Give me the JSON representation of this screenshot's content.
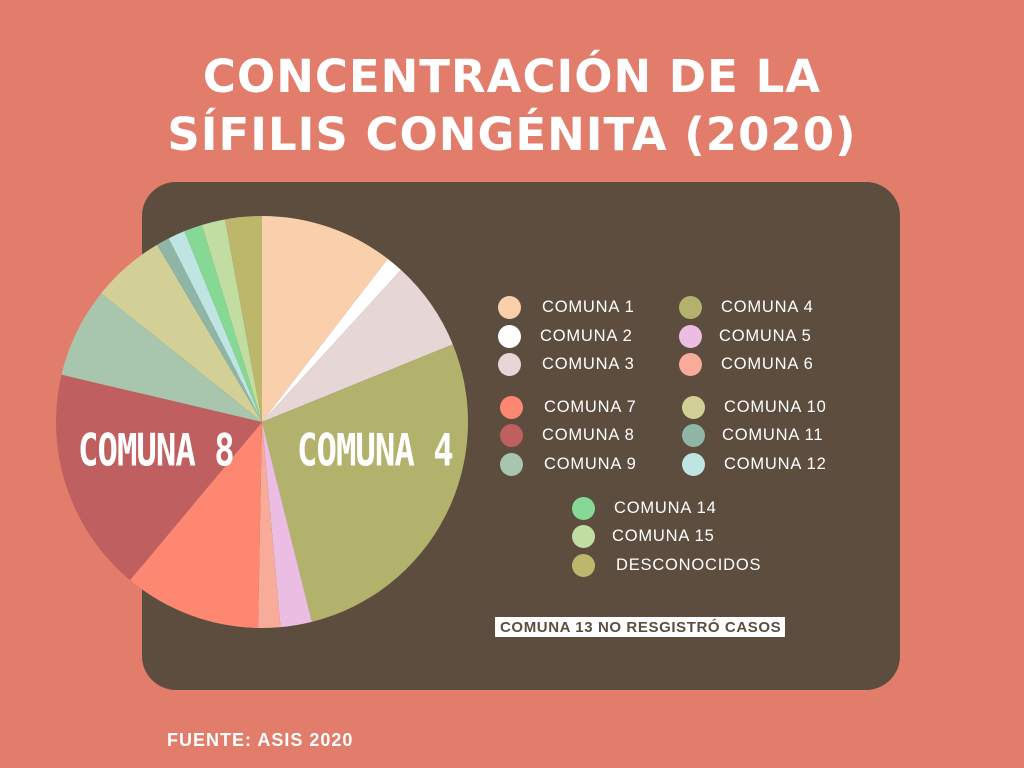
{
  "title_line1": "CONCENTRACIÓN DE LA",
  "title_line2": "SÍFILIS CONGÉNITA (2020)",
  "source": "FUENTE: ASIS 2020",
  "note": "COMUNA 13 NO RESGISTRÓ CASOS",
  "big_labels": {
    "comuna4": "COMUNA 4",
    "comuna8": "COMUNA 8"
  },
  "legend": [
    {
      "label": "COMUNA 1",
      "color": "#f9d0ab"
    },
    {
      "label": "COMUNA 4",
      "color": "#b3b26d"
    },
    {
      "label": "COMUNA 2",
      "color": "#ffffff"
    },
    {
      "label": "COMUNA 5",
      "color": "#ebbde3"
    },
    {
      "label": "COMUNA 3",
      "color": "#e6d6d6"
    },
    {
      "label": "COMUNA 6",
      "color": "#f9ab9a"
    },
    {
      "label": "COMUNA 7",
      "color": "#fd8770"
    },
    {
      "label": "COMUNA 10",
      "color": "#d2d097"
    },
    {
      "label": "COMUNA 8",
      "color": "#c05f5f"
    },
    {
      "label": "COMUNA 11",
      "color": "#8eb5a5"
    },
    {
      "label": "COMUNA 9",
      "color": "#a8c6ae"
    },
    {
      "label": "COMUNA 12",
      "color": "#bee5e2"
    },
    {
      "label": "COMUNA 14",
      "color": "#86d994"
    },
    {
      "label": "COMUNA 15",
      "color": "#c2dda1"
    },
    {
      "label": "DESCONOCIDOS",
      "color": "#bdb76b"
    }
  ],
  "chart_data": {
    "type": "pie",
    "title": "CONCENTRACIÓN DE LA SÍFILIS CONGÉNITA (2020)",
    "unit": "percent share (estimated from slice angles)",
    "slices": [
      {
        "label": "COMUNA 1",
        "value": 10.2,
        "color": "#f9d0ab"
      },
      {
        "label": "COMUNA 2",
        "value": 1.3,
        "color": "#ffffff"
      },
      {
        "label": "COMUNA 3",
        "value": 6.9,
        "color": "#e6d6d6"
      },
      {
        "label": "COMUNA 4",
        "value": 26.6,
        "color": "#b3b26d"
      },
      {
        "label": "COMUNA 5",
        "value": 2.4,
        "color": "#ebbde3"
      },
      {
        "label": "COMUNA 6",
        "value": 1.7,
        "color": "#f9ab9a"
      },
      {
        "label": "COMUNA 7",
        "value": 10.5,
        "color": "#fd8770"
      },
      {
        "label": "COMUNA 8",
        "value": 17.2,
        "color": "#c05f5f"
      },
      {
        "label": "COMUNA 9",
        "value": 6.9,
        "color": "#a8c6ae"
      },
      {
        "label": "COMUNA 10",
        "value": 5.6,
        "color": "#d2d097"
      },
      {
        "label": "COMUNA 11",
        "value": 1.0,
        "color": "#8eb5a5"
      },
      {
        "label": "COMUNA 12",
        "value": 1.3,
        "color": "#bee5e2"
      },
      {
        "label": "COMUNA 14",
        "value": 1.4,
        "color": "#86d994"
      },
      {
        "label": "COMUNA 15",
        "value": 1.8,
        "color": "#c2dda1"
      },
      {
        "label": "DESCONOCIDOS",
        "value": 2.8,
        "color": "#bdb76b"
      }
    ],
    "start_angle": "12 o'clock, clockwise",
    "legend_placement": "right"
  }
}
